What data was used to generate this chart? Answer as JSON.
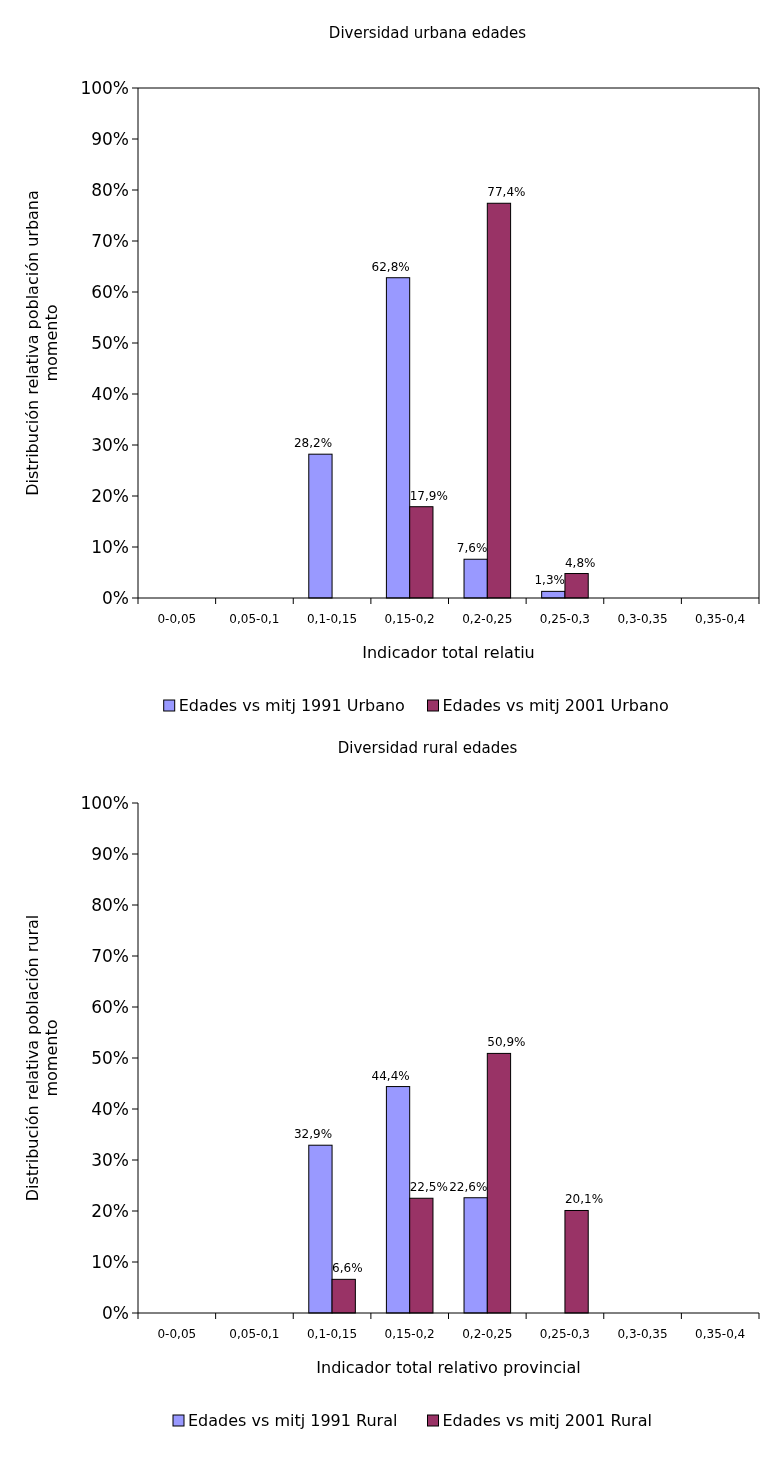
{
  "chart_data": [
    {
      "type": "bar",
      "title": "Diversidad urbana edades",
      "xlabel": "Indicador total relatiu",
      "ylabel": "Distribución relativa población urbana momento",
      "categories": [
        "0-0,05",
        "0,05-0,1",
        "0,1-0,15",
        "0,15-0,2",
        "0,2-0,25",
        "0,25-0,3",
        "0,3-0,35",
        "0,35-0,4"
      ],
      "series": [
        {
          "name": "Edades vs mitj 1991 Urbano",
          "color": "#9999ff",
          "values": [
            0,
            0,
            28.2,
            62.8,
            7.6,
            1.3,
            0,
            0
          ],
          "value_labels": [
            null,
            null,
            "28,2%",
            "62,8%",
            "7,6%",
            "1,3%",
            null,
            null
          ]
        },
        {
          "name": "Edades vs mitj 2001 Urbano",
          "color": "#993366",
          "values": [
            0,
            0,
            0,
            17.9,
            77.4,
            4.8,
            0,
            0
          ],
          "value_labels": [
            null,
            null,
            null,
            "17,9%",
            "77,4%",
            "4,8%",
            null,
            null
          ]
        }
      ],
      "ylim": [
        0,
        100
      ],
      "yticks": [
        {
          "value": 0,
          "label": "0%"
        },
        {
          "value": 10,
          "label": "10%"
        },
        {
          "value": 20,
          "label": "20%"
        },
        {
          "value": 30,
          "label": "30%"
        },
        {
          "value": 40,
          "label": "40%"
        },
        {
          "value": 50,
          "label": "50%"
        },
        {
          "value": 60,
          "label": "60%"
        },
        {
          "value": 70,
          "label": "70%"
        },
        {
          "value": 80,
          "label": "80%"
        },
        {
          "value": 90,
          "label": "90%"
        },
        {
          "value": 100,
          "label": "100%"
        }
      ],
      "legend": "bottom"
    },
    {
      "type": "bar",
      "title": "Diversidad rural edades",
      "xlabel": "Indicador total relativo provincial",
      "ylabel": "Distribución relativa población rural momento",
      "categories": [
        "0-0,05",
        "0,05-0,1",
        "0,1-0,15",
        "0,15-0,2",
        "0,2-0,25",
        "0,25-0,3",
        "0,3-0,35",
        "0,35-0,4"
      ],
      "series": [
        {
          "name": "Edades vs mitj 1991 Rural",
          "color": "#9999ff",
          "values": [
            0,
            0,
            32.9,
            44.4,
            22.6,
            0,
            0,
            0
          ],
          "value_labels": [
            null,
            null,
            "32,9%",
            "44,4%",
            "22,6%",
            null,
            null,
            null
          ]
        },
        {
          "name": "Edades vs mitj 2001 Rural",
          "color": "#993366",
          "values": [
            0,
            0,
            6.6,
            22.5,
            50.9,
            20.1,
            0,
            0
          ],
          "value_labels": [
            null,
            null,
            "6,6%",
            "22,5%",
            "50,9%",
            "20,1%",
            null,
            null
          ]
        }
      ],
      "ylim": [
        0,
        100
      ],
      "yticks": [
        {
          "value": 0,
          "label": "0%"
        },
        {
          "value": 10,
          "label": "10%"
        },
        {
          "value": 20,
          "label": "20%"
        },
        {
          "value": 30,
          "label": "30%"
        },
        {
          "value": 40,
          "label": "40%"
        },
        {
          "value": 50,
          "label": "50%"
        },
        {
          "value": 60,
          "label": "60%"
        },
        {
          "value": 70,
          "label": "70%"
        },
        {
          "value": 80,
          "label": "80%"
        },
        {
          "value": 90,
          "label": "90%"
        },
        {
          "value": 100,
          "label": "100%"
        }
      ],
      "legend": "bottom"
    }
  ]
}
